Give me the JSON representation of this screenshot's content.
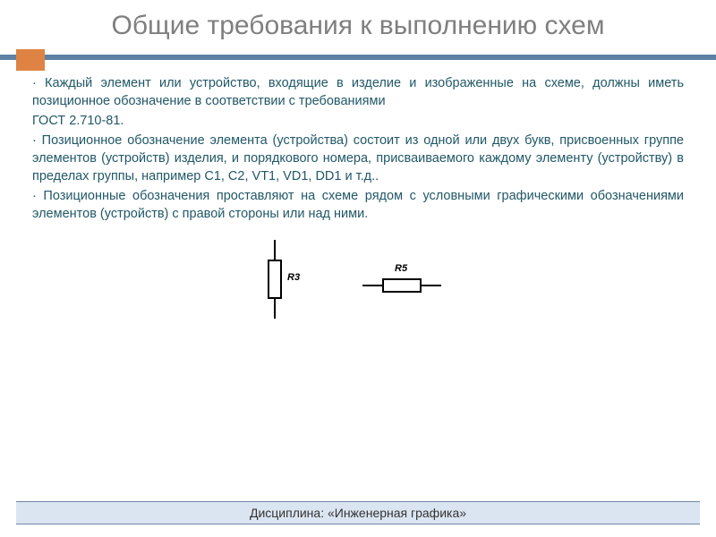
{
  "title": "Общие требования к выполнению схем",
  "paragraphs": {
    "p1": "· Каждый элемент или устройство, входящие в изделие и изображенные на схеме, должны иметь позиционное обозначение в соответствии с требованиями",
    "gost": "ГОСТ 2.710-81.",
    "p2": "· Позиционное обозначение элемента (устройства) состоит из одной или двух букв, присвоенных группе элементов (устройств) изделия, и порядкового номера, присваиваемого каждому элементу (устройству) в пределах группы, например С1, С2, VT1,  VD1, DD1  и т.д..",
    "p3": "·  Позиционные обозначения проставляют на схеме рядом с условными графическими обозначениями элементов (устройств) с правой стороны или над ними."
  },
  "diagram": {
    "vertical_label": "R3",
    "horizontal_label": "R5"
  },
  "footer": "Дисциплина: «Инженерная графика»",
  "colors": {
    "title": "#7f7f7f",
    "accent_square": "#de8344",
    "accent_line": "#5f82a5",
    "body_text": "#215867",
    "footer_bg": "#dbe5f1",
    "footer_border": "#6f86a8"
  }
}
